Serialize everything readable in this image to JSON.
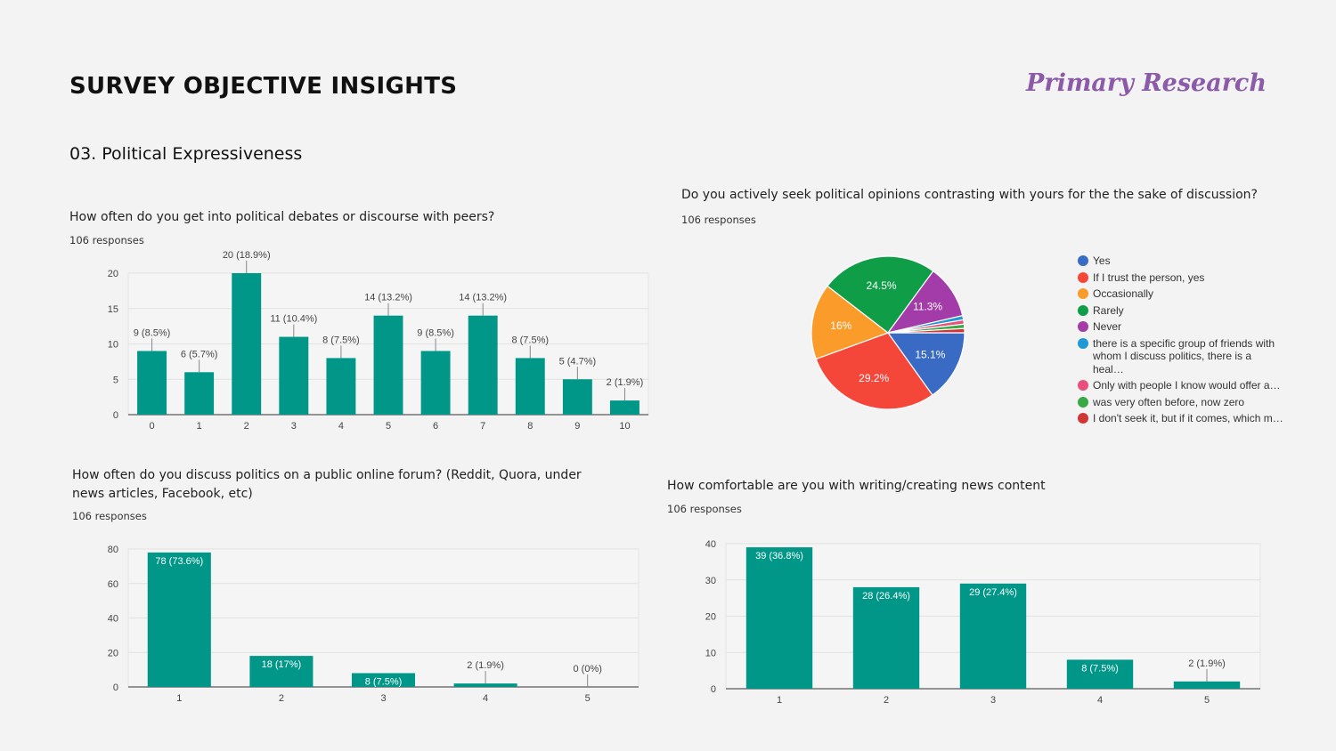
{
  "header": {
    "title": "SURVEY OBJECTIVE INSIGHTS",
    "brand": "Primary Research"
  },
  "section": {
    "title": "03. Political Expressiveness"
  },
  "chart_data": [
    {
      "type": "bar",
      "title": "How often do you get into political debates or discourse with peers?",
      "subtitle": "106 responses",
      "categories": [
        "0",
        "1",
        "2",
        "3",
        "4",
        "5",
        "6",
        "7",
        "8",
        "9",
        "10"
      ],
      "values": [
        9,
        6,
        20,
        11,
        8,
        14,
        9,
        14,
        8,
        5,
        2
      ],
      "labels": [
        "9 (8.5%)",
        "6 (5.7%)",
        "20 (18.9%)",
        "11 (10.4%)",
        "8 (7.5%)",
        "14 (13.2%)",
        "9 (8.5%)",
        "14 (13.2%)",
        "8 (7.5%)",
        "5 (4.7%)",
        "2 (1.9%)"
      ],
      "yticks": [
        "0",
        "5",
        "10",
        "15",
        "20"
      ],
      "ylim": [
        0,
        20
      ],
      "grid": true,
      "color": "#009688"
    },
    {
      "type": "pie",
      "title": "Do you actively seek political opinions contrasting with yours for the the sake of discussion?",
      "subtitle": "106 responses",
      "legend_position": "right",
      "slices": [
        {
          "name": "Yes",
          "value": 15.1,
          "label": "15.1%",
          "color": "#3a6bc4"
        },
        {
          "name": "If I trust the person, yes",
          "value": 29.2,
          "label": "29.2%",
          "color": "#f4473a"
        },
        {
          "name": "Occasionally",
          "value": 16,
          "label": "16%",
          "color": "#fb9b2a"
        },
        {
          "name": "Rarely",
          "value": 24.5,
          "label": "24.5%",
          "color": "#0f9d48"
        },
        {
          "name": "Never",
          "value": 11.3,
          "label": "11.3%",
          "color": "#a33ba8"
        },
        {
          "name": "there is a specific group of friends with whom I discuss politics, there is a heal…",
          "value": 0.9,
          "label": "",
          "color": "#1d9ad6"
        },
        {
          "name": "Only with people I know would offer a…",
          "value": 0.9,
          "label": "",
          "color": "#e9507e"
        },
        {
          "name": "was very often before, now zero",
          "value": 0.9,
          "label": "",
          "color": "#3aa844"
        },
        {
          "name": "I don't seek it, but if it comes, which m…",
          "value": 0.9,
          "label": "",
          "color": "#d13636"
        }
      ]
    },
    {
      "type": "bar",
      "title": "How often do you discuss politics on a public online forum? (Reddit, Quora, under news articles, Facebook, etc)",
      "subtitle": "106 responses",
      "categories": [
        "1",
        "2",
        "3",
        "4",
        "5"
      ],
      "values": [
        78,
        18,
        8,
        2,
        0
      ],
      "labels": [
        "78 (73.6%)",
        "18 (17%)",
        "8 (7.5%)",
        "2 (1.9%)",
        "0 (0%)"
      ],
      "yticks": [
        "0",
        "20",
        "40",
        "60",
        "80"
      ],
      "ylim": [
        0,
        80
      ],
      "grid": true,
      "color": "#009688"
    },
    {
      "type": "bar",
      "title": "How comfortable are you with writing/creating news content",
      "subtitle": "106 responses",
      "categories": [
        "1",
        "2",
        "3",
        "4",
        "5"
      ],
      "values": [
        39,
        28,
        29,
        8,
        2
      ],
      "labels": [
        "39 (36.8%)",
        "28 (26.4%)",
        "29 (27.4%)",
        "8 (7.5%)",
        "2 (1.9%)"
      ],
      "yticks": [
        "0",
        "10",
        "20",
        "30",
        "40"
      ],
      "ylim": [
        0,
        40
      ],
      "grid": true,
      "color": "#009688"
    }
  ]
}
